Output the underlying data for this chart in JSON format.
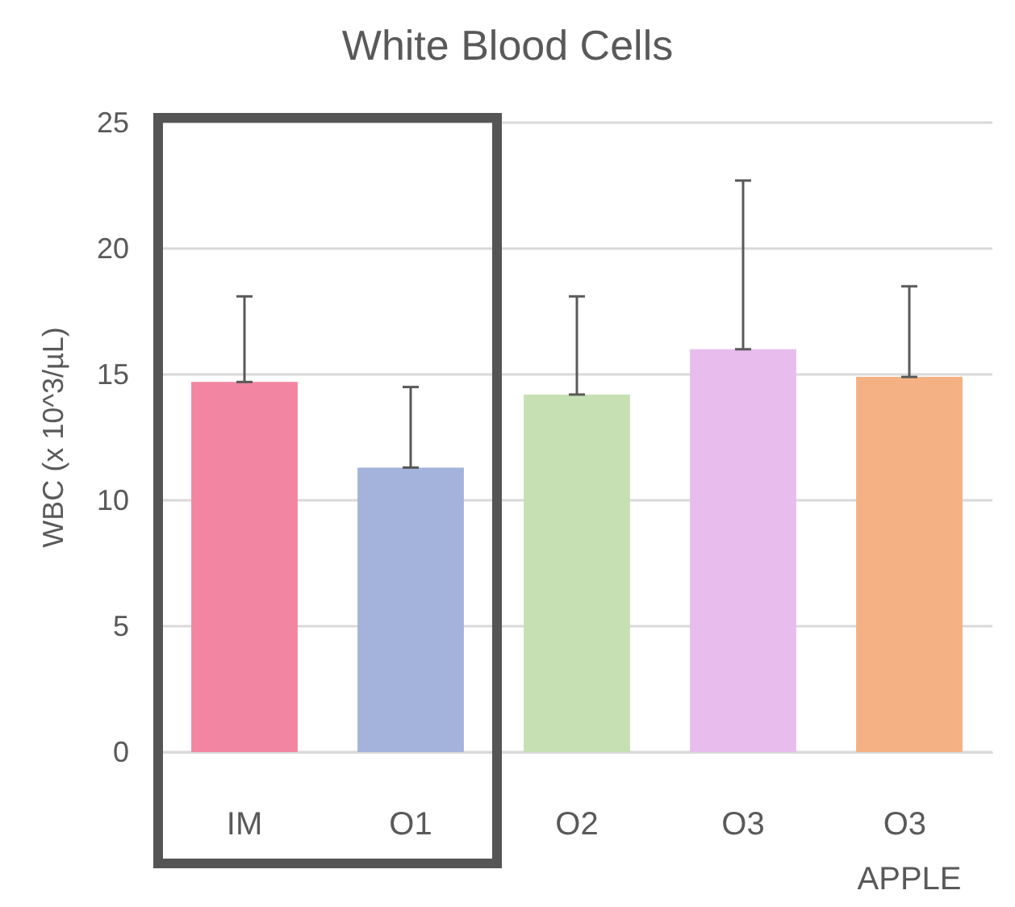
{
  "chart_data": {
    "type": "bar",
    "title": "White Blood Cells",
    "ylabel": "WBC (x 10^3/µL)",
    "categories": [
      "IM",
      "O1",
      "O2",
      "O3",
      "O3 APPLE"
    ],
    "values": [
      14.7,
      11.3,
      14.2,
      16.0,
      14.9
    ],
    "colors": [
      "#f285a2",
      "#a3b3dc",
      "#c6e0b4",
      "#e8bdee",
      "#f4b183"
    ],
    "errors": [
      [
        14.7,
        18.1
      ],
      [
        11.3,
        14.5
      ],
      [
        14.2,
        18.1
      ],
      [
        16.0,
        22.7
      ],
      [
        14.9,
        18.5
      ]
    ],
    "ylim": [
      0,
      25
    ],
    "yticks": [
      0,
      5,
      10,
      15,
      20,
      25
    ],
    "grid": "y"
  }
}
